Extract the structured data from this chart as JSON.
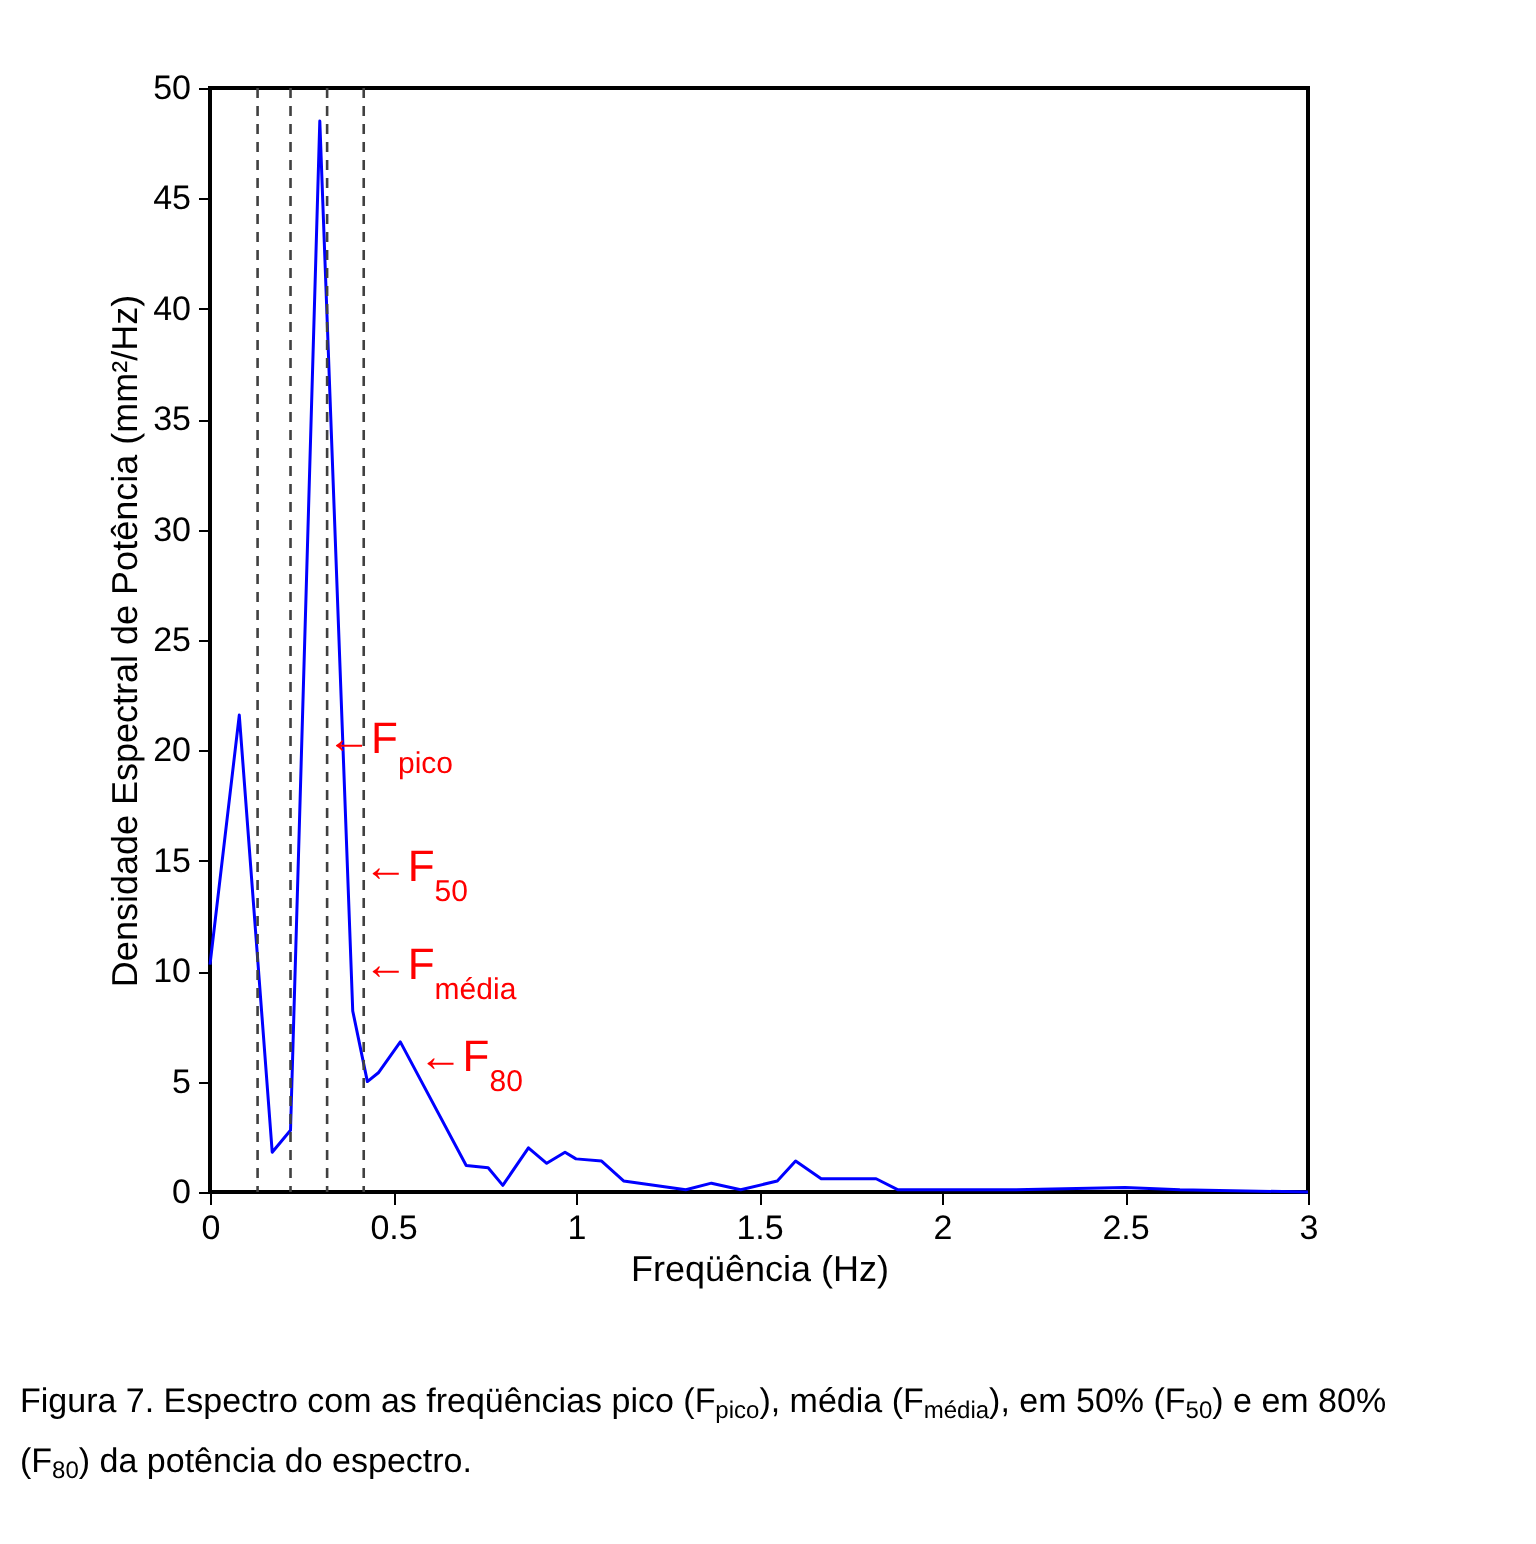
{
  "chart_data": {
    "type": "line",
    "xlabel": "Freqüência (Hz)",
    "ylabel": "Densidade Espectral de Potência (mm²/Hz)",
    "x": [
      0,
      0.08,
      0.17,
      0.22,
      0.3,
      0.39,
      0.43,
      0.46,
      0.52,
      0.7,
      0.76,
      0.8,
      0.87,
      0.92,
      0.97,
      1.0,
      1.07,
      1.13,
      1.3,
      1.37,
      1.45,
      1.55,
      1.6,
      1.67,
      1.75,
      1.82,
      1.88,
      2.0,
      2.2,
      2.5,
      2.65,
      3.0
    ],
    "series": [
      {
        "color": "#0000ff",
        "values": [
          10.3,
          21.6,
          1.8,
          2.8,
          48.5,
          8.2,
          5.0,
          5.4,
          6.8,
          1.2,
          1.1,
          0.3,
          2.0,
          1.3,
          1.8,
          1.5,
          1.4,
          0.5,
          0.1,
          0.4,
          0.1,
          0.5,
          1.4,
          0.6,
          0.6,
          0.6,
          0.1,
          0.1,
          0.1,
          0.2,
          0.1,
          0
        ]
      }
    ],
    "xlim": [
      0,
      3
    ],
    "xticks": [
      0,
      0.5,
      1,
      1.5,
      2,
      2.5,
      3
    ],
    "ylim": [
      0,
      50
    ],
    "yticks": [
      0,
      5,
      10,
      15,
      20,
      25,
      30,
      35,
      40,
      45,
      50
    ],
    "grid": false,
    "marker": "none",
    "line_style": "solid",
    "ref_lines": [
      {
        "axis": "x",
        "value": 0.13,
        "color": "#404040",
        "line_style": "dashed"
      },
      {
        "axis": "x",
        "value": 0.22,
        "color": "#404040",
        "line_style": "dashed"
      },
      {
        "axis": "x",
        "value": 0.32,
        "color": "#404040",
        "line_style": "dashed"
      },
      {
        "axis": "x",
        "value": 0.42,
        "color": "#404040",
        "line_style": "dashed"
      }
    ],
    "annotations": [
      {
        "text": "←F$_{pico}$",
        "x": 0.32,
        "y": 20.5
      },
      {
        "text": "←F$_{50}$",
        "x": 0.42,
        "y": 14.7
      },
      {
        "text": "←F$_{média}$",
        "x": 0.42,
        "y": 10.3
      },
      {
        "text": "←F$_{80}$",
        "x": 0.57,
        "y": 6.1
      },
      "Figura 7. Espectro com as freqüências pico (F$_{pico}$), média (F$_{média}$), em 50% (F$_{50}$) e em 80% (F$_{80}$) da potência do espectro."
    ]
  }
}
